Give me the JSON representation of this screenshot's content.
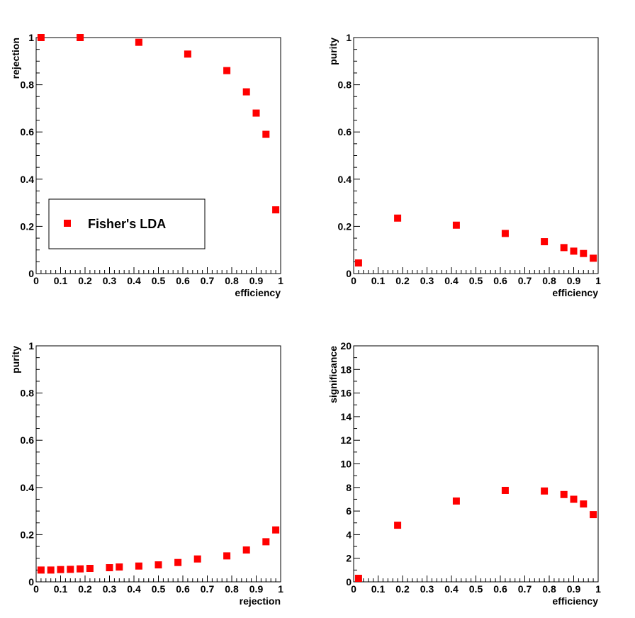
{
  "colors": {
    "marker": "#ff0000",
    "frame": "#000000",
    "background": "#ffffff"
  },
  "legend": {
    "label": "Fisher's LDA",
    "placement": "lower-left of top-left panel"
  },
  "chart_data": [
    {
      "type": "scatter",
      "panel": "top-left",
      "xlabel": "efficiency",
      "ylabel": "rejection",
      "xlim": [
        0,
        1
      ],
      "ylim": [
        0,
        1
      ],
      "xticks": [
        "0",
        "0.1",
        "0.2",
        "0.3",
        "0.4",
        "0.5",
        "0.6",
        "0.7",
        "0.8",
        "0.9",
        "1"
      ],
      "yticks": [
        "0",
        "0.2",
        "0.4",
        "0.6",
        "0.8",
        "1"
      ],
      "series": [
        {
          "name": "Fisher's LDA",
          "x": [
            0.02,
            0.18,
            0.42,
            0.62,
            0.78,
            0.86,
            0.9,
            0.94,
            0.98
          ],
          "y": [
            1.0,
            1.0,
            0.98,
            0.93,
            0.86,
            0.77,
            0.68,
            0.59,
            0.27
          ]
        }
      ]
    },
    {
      "type": "scatter",
      "panel": "top-right",
      "xlabel": "efficiency",
      "ylabel": "purity",
      "xlim": [
        0,
        1
      ],
      "ylim": [
        0,
        1
      ],
      "xticks": [
        "0",
        "0.1",
        "0.2",
        "0.3",
        "0.4",
        "0.5",
        "0.6",
        "0.7",
        "0.8",
        "0.9",
        "1"
      ],
      "yticks": [
        "0",
        "0.2",
        "0.4",
        "0.6",
        "0.8",
        "1"
      ],
      "series": [
        {
          "x": [
            0.02,
            0.18,
            0.42,
            0.62,
            0.78,
            0.86,
            0.9,
            0.94,
            0.98
          ],
          "y": [
            0.045,
            0.235,
            0.205,
            0.17,
            0.135,
            0.11,
            0.095,
            0.085,
            0.065
          ]
        }
      ]
    },
    {
      "type": "scatter",
      "panel": "bottom-left",
      "xlabel": "rejection",
      "ylabel": "purity",
      "xlim": [
        0,
        1
      ],
      "ylim": [
        0,
        1
      ],
      "xticks": [
        "0",
        "0.1",
        "0.2",
        "0.3",
        "0.4",
        "0.5",
        "0.6",
        "0.7",
        "0.8",
        "0.9",
        "1"
      ],
      "yticks": [
        "0",
        "0.2",
        "0.4",
        "0.6",
        "0.8",
        "1"
      ],
      "series": [
        {
          "x": [
            0.02,
            0.06,
            0.1,
            0.14,
            0.18,
            0.22,
            0.3,
            0.34,
            0.42,
            0.5,
            0.58,
            0.66,
            0.78,
            0.86,
            0.94,
            0.98
          ],
          "y": [
            0.05,
            0.05,
            0.052,
            0.053,
            0.055,
            0.057,
            0.06,
            0.063,
            0.067,
            0.072,
            0.082,
            0.097,
            0.11,
            0.135,
            0.17,
            0.22
          ]
        }
      ]
    },
    {
      "type": "scatter",
      "panel": "bottom-right",
      "xlabel": "efficiency",
      "ylabel": "significance",
      "xlim": [
        0,
        1
      ],
      "ylim": [
        0,
        20
      ],
      "xticks": [
        "0",
        "0.1",
        "0.2",
        "0.3",
        "0.4",
        "0.5",
        "0.6",
        "0.7",
        "0.8",
        "0.9",
        "1"
      ],
      "yticks": [
        "0",
        "2",
        "4",
        "6",
        "8",
        "10",
        "12",
        "14",
        "16",
        "18",
        "20"
      ],
      "series": [
        {
          "x": [
            0.02,
            0.18,
            0.42,
            0.62,
            0.78,
            0.86,
            0.9,
            0.94,
            0.98
          ],
          "y": [
            0.3,
            4.8,
            6.85,
            7.75,
            7.7,
            7.4,
            7.0,
            6.6,
            5.7
          ]
        }
      ]
    }
  ]
}
